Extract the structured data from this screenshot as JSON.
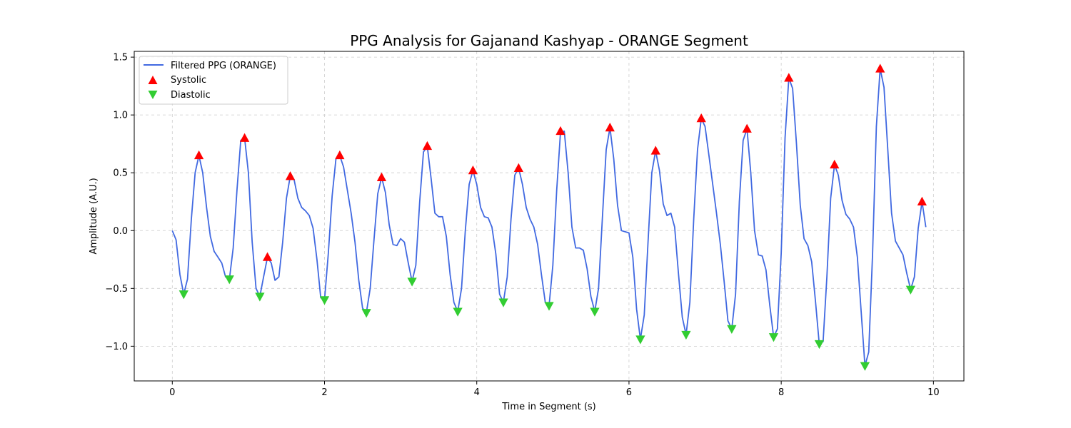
{
  "chart_data": {
    "type": "line",
    "title": "PPG Analysis for Gajanand Kashyap - ORANGE Segment",
    "xlabel": "Time in Segment (s)",
    "ylabel": "Amplitude (A.U.)",
    "xlim": [
      -0.5,
      10.4
    ],
    "ylim": [
      -1.3,
      1.55
    ],
    "xticks": [
      0,
      2,
      4,
      6,
      8,
      10
    ],
    "xtick_labels": [
      "0",
      "2",
      "4",
      "6",
      "8",
      "10"
    ],
    "yticks": [
      -1.0,
      -0.5,
      0.0,
      0.5,
      1.0,
      1.5
    ],
    "ytick_labels": [
      "−1.0",
      "−0.5",
      "0.0",
      "0.5",
      "1.0",
      "1.5"
    ],
    "grid": true,
    "legend_position": "top-left",
    "series": [
      {
        "name": "Filtered PPG (ORANGE)",
        "kind": "line",
        "color": "#4169e1",
        "x": [
          0.0,
          0.05,
          0.1,
          0.15,
          0.2,
          0.25,
          0.3,
          0.35,
          0.4,
          0.45,
          0.5,
          0.55,
          0.6,
          0.65,
          0.7,
          0.75,
          0.8,
          0.85,
          0.9,
          0.95,
          1.0,
          1.05,
          1.1,
          1.15,
          1.2,
          1.25,
          1.3,
          1.35,
          1.4,
          1.45,
          1.5,
          1.55,
          1.6,
          1.65,
          1.7,
          1.75,
          1.8,
          1.85,
          1.9,
          1.95,
          2.0,
          2.05,
          2.1,
          2.15,
          2.2,
          2.25,
          2.3,
          2.35,
          2.4,
          2.45,
          2.5,
          2.55,
          2.6,
          2.65,
          2.7,
          2.75,
          2.8,
          2.85,
          2.9,
          2.95,
          3.0,
          3.05,
          3.1,
          3.15,
          3.2,
          3.25,
          3.3,
          3.35,
          3.4,
          3.45,
          3.5,
          3.55,
          3.6,
          3.65,
          3.7,
          3.75,
          3.8,
          3.85,
          3.9,
          3.95,
          4.0,
          4.05,
          4.1,
          4.15,
          4.2,
          4.25,
          4.3,
          4.35,
          4.4,
          4.45,
          4.5,
          4.55,
          4.6,
          4.65,
          4.7,
          4.75,
          4.8,
          4.85,
          4.9,
          4.95,
          5.0,
          5.05,
          5.1,
          5.15,
          5.2,
          5.25,
          5.3,
          5.35,
          5.4,
          5.45,
          5.5,
          5.55,
          5.6,
          5.65,
          5.7,
          5.75,
          5.8,
          5.85,
          5.9,
          5.95,
          6.0,
          6.05,
          6.1,
          6.15,
          6.2,
          6.25,
          6.3,
          6.35,
          6.4,
          6.45,
          6.5,
          6.55,
          6.6,
          6.65,
          6.7,
          6.75,
          6.8,
          6.85,
          6.9,
          6.95,
          7.0,
          7.05,
          7.1,
          7.15,
          7.2,
          7.25,
          7.3,
          7.35,
          7.4,
          7.45,
          7.5,
          7.55,
          7.6,
          7.65,
          7.7,
          7.75,
          7.8,
          7.85,
          7.9,
          7.95,
          8.0,
          8.05,
          8.1,
          8.15,
          8.2,
          8.25,
          8.3,
          8.35,
          8.4,
          8.45,
          8.5,
          8.55,
          8.6,
          8.65,
          8.7,
          8.75,
          8.8,
          8.85,
          8.9,
          8.95,
          9.0,
          9.05,
          9.1,
          9.15,
          9.2,
          9.25,
          9.3,
          9.35,
          9.4,
          9.45,
          9.5,
          9.55,
          9.6,
          9.65,
          9.7,
          9.75,
          9.8,
          9.85,
          9.9
        ],
        "y": [
          0.0,
          -0.08,
          -0.38,
          -0.55,
          -0.42,
          0.1,
          0.5,
          0.65,
          0.5,
          0.2,
          -0.05,
          -0.18,
          -0.23,
          -0.28,
          -0.4,
          -0.42,
          -0.15,
          0.35,
          0.78,
          0.8,
          0.5,
          -0.1,
          -0.5,
          -0.57,
          -0.4,
          -0.23,
          -0.28,
          -0.43,
          -0.4,
          -0.1,
          0.28,
          0.47,
          0.44,
          0.28,
          0.2,
          0.17,
          0.13,
          0.02,
          -0.25,
          -0.58,
          -0.6,
          -0.2,
          0.3,
          0.62,
          0.65,
          0.55,
          0.35,
          0.15,
          -0.1,
          -0.43,
          -0.67,
          -0.71,
          -0.5,
          -0.08,
          0.32,
          0.46,
          0.33,
          0.05,
          -0.12,
          -0.13,
          -0.07,
          -0.1,
          -0.28,
          -0.44,
          -0.3,
          0.25,
          0.68,
          0.73,
          0.45,
          0.15,
          0.12,
          0.12,
          -0.05,
          -0.38,
          -0.62,
          -0.7,
          -0.5,
          0.0,
          0.4,
          0.52,
          0.4,
          0.2,
          0.12,
          0.11,
          0.03,
          -0.2,
          -0.55,
          -0.62,
          -0.4,
          0.1,
          0.48,
          0.54,
          0.4,
          0.2,
          0.1,
          0.03,
          -0.12,
          -0.38,
          -0.62,
          -0.65,
          -0.3,
          0.35,
          0.85,
          0.86,
          0.5,
          0.03,
          -0.15,
          -0.15,
          -0.17,
          -0.33,
          -0.57,
          -0.7,
          -0.5,
          0.1,
          0.7,
          0.89,
          0.62,
          0.22,
          0.0,
          -0.01,
          -0.02,
          -0.23,
          -0.68,
          -0.94,
          -0.73,
          -0.1,
          0.5,
          0.69,
          0.52,
          0.23,
          0.13,
          0.15,
          0.03,
          -0.37,
          -0.75,
          -0.9,
          -0.62,
          0.1,
          0.7,
          0.97,
          0.9,
          0.65,
          0.4,
          0.15,
          -0.12,
          -0.44,
          -0.78,
          -0.85,
          -0.55,
          0.25,
          0.78,
          0.88,
          0.5,
          0.0,
          -0.21,
          -0.22,
          -0.34,
          -0.65,
          -0.92,
          -0.85,
          -0.2,
          0.8,
          1.32,
          1.23,
          0.75,
          0.22,
          -0.07,
          -0.13,
          -0.27,
          -0.61,
          -0.98,
          -0.96,
          -0.4,
          0.28,
          0.57,
          0.48,
          0.26,
          0.14,
          0.1,
          0.03,
          -0.23,
          -0.7,
          -1.17,
          -1.05,
          -0.2,
          0.9,
          1.4,
          1.24,
          0.7,
          0.15,
          -0.09,
          -0.15,
          -0.21,
          -0.37,
          -0.51,
          -0.4,
          0.02,
          0.25,
          0.03
        ]
      },
      {
        "name": "Systolic",
        "kind": "marker",
        "marker": "triangle-up",
        "color": "#ff0000",
        "x": [
          0.35,
          0.95,
          1.25,
          1.55,
          2.2,
          2.75,
          3.35,
          3.95,
          4.55,
          5.1,
          5.75,
          6.35,
          6.95,
          7.55,
          8.1,
          8.7,
          9.3,
          9.85
        ],
        "y": [
          0.65,
          0.8,
          -0.23,
          0.47,
          0.65,
          0.46,
          0.73,
          0.52,
          0.54,
          0.86,
          0.89,
          0.69,
          0.97,
          0.88,
          1.32,
          0.57,
          1.4,
          0.25
        ]
      },
      {
        "name": "Diastolic",
        "kind": "marker",
        "marker": "triangle-down",
        "color": "#32cd32",
        "x": [
          0.15,
          0.75,
          1.15,
          2.0,
          2.55,
          3.15,
          3.75,
          4.35,
          4.95,
          5.55,
          6.15,
          6.75,
          7.35,
          7.9,
          8.5,
          9.1,
          9.7
        ],
        "y": [
          -0.55,
          -0.42,
          -0.57,
          -0.6,
          -0.71,
          -0.44,
          -0.7,
          -0.62,
          -0.65,
          -0.7,
          -0.94,
          -0.9,
          -0.85,
          -0.92,
          -0.98,
          -1.17,
          -0.51
        ]
      }
    ]
  },
  "colors": {
    "grid": "#cccccc",
    "axis": "#000000",
    "legend_border": "#cccccc"
  }
}
